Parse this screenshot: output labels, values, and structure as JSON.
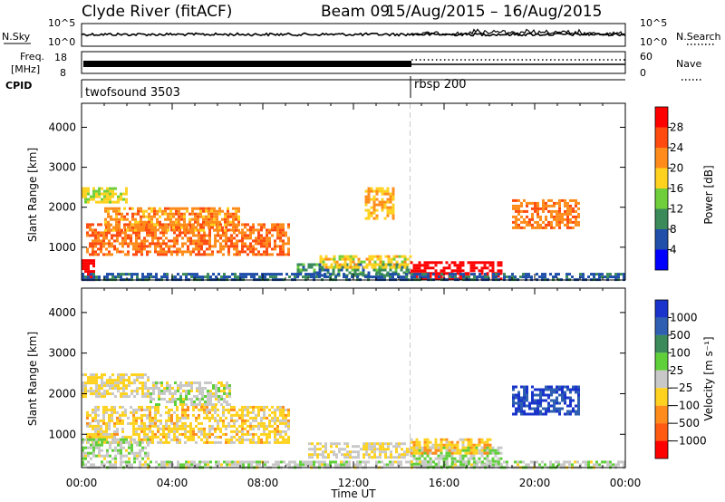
{
  "header": {
    "title": "Clyde River (fitACF)",
    "beam": "Beam 09",
    "date_range": "15/Aug/2015 – 16/Aug/2015"
  },
  "top_panels": {
    "nsky_label": "N.Sky",
    "nsearch_label": "N.Search",
    "noise_left_ticks": [
      "10^5",
      "10^0"
    ],
    "noise_right_ticks": [
      "10^5",
      "10^0"
    ],
    "freq_label_1": "Freq.",
    "freq_label_2": "[MHz]",
    "freq_left_ticks": [
      "18",
      "8"
    ],
    "nave_label": "Nave",
    "nave_right_ticks": [
      "60",
      "0"
    ],
    "cpid_label": "CPID",
    "cpid_segments": [
      {
        "label": "twofsound 3503",
        "start": 0,
        "end": 14.5
      },
      {
        "label": "rbsp 200",
        "start": 14.5,
        "end": 24
      }
    ]
  },
  "colors": {
    "power": [
      "#0000ff",
      "#1f4fa8",
      "#3a8a5a",
      "#6fcf3a",
      "#ffd21f",
      "#ff8c1a",
      "#ff4a10",
      "#ff0000"
    ],
    "velocity": [
      "#1a33cc",
      "#2e5fb0",
      "#3a8a5a",
      "#5fcf3a",
      "#c8c8c8",
      "#ffd21f",
      "#ff8c1a",
      "#ff5a10",
      "#ff0000"
    ]
  },
  "chart_data": [
    {
      "type": "heatmap",
      "ylabel": "Slant Range [km]",
      "xlabel": "",
      "y_ticks": [
        1000,
        2000,
        3000,
        4000
      ],
      "ylim": [
        180,
        4600
      ],
      "colorbar_label": "Power [dB]",
      "colorbar_ticks": [
        4,
        8,
        12,
        16,
        20,
        24,
        28
      ],
      "clim": [
        0,
        32
      ],
      "regions": [
        {
          "t0": 0.0,
          "t1": 0.5,
          "r0": 200,
          "r1": 700,
          "value": 31
        },
        {
          "t0": 0.2,
          "t1": 9.2,
          "r0": 800,
          "r1": 1600,
          "value": 24
        },
        {
          "t0": 1.0,
          "t1": 7.0,
          "r0": 1400,
          "r1": 2000,
          "value": 22
        },
        {
          "t0": 0.0,
          "t1": 2.0,
          "r0": 2100,
          "r1": 2500,
          "value": 17
        },
        {
          "t0": 9.5,
          "t1": 14.5,
          "r0": 300,
          "r1": 600,
          "value": 10
        },
        {
          "t0": 10.5,
          "t1": 14.5,
          "r0": 500,
          "r1": 800,
          "value": 18
        },
        {
          "t0": 14.5,
          "t1": 18.5,
          "r0": 200,
          "r1": 650,
          "value": 31
        },
        {
          "t0": 12.5,
          "t1": 13.8,
          "r0": 1700,
          "r1": 2500,
          "value": 20
        },
        {
          "t0": 19.0,
          "t1": 22.0,
          "r0": 1500,
          "r1": 2200,
          "value": 23
        },
        {
          "t0": 0.0,
          "t1": 24.0,
          "r0": 180,
          "r1": 360,
          "value": 7
        }
      ]
    },
    {
      "type": "heatmap",
      "ylabel": "Slant Range [km]",
      "xlabel": "Time UT",
      "x_ticks": [
        "00:00",
        "04:00",
        "08:00",
        "12:00",
        "16:00",
        "20:00",
        "00:00"
      ],
      "y_ticks": [
        1000,
        2000,
        3000,
        4000
      ],
      "ylim": [
        180,
        4600
      ],
      "colorbar_label": "Velocity [m s⁻¹]",
      "colorbar_ticks": [
        "1000",
        "500",
        "100",
        "25",
        "−25",
        "−100",
        "−500",
        "−1000"
      ],
      "clim": [
        -1000,
        1000
      ],
      "regions": [
        {
          "t0": 0.2,
          "t1": 9.2,
          "r0": 800,
          "r1": 1700,
          "value": -200
        },
        {
          "t0": 0.0,
          "t1": 3.0,
          "r0": 1900,
          "r1": 2500,
          "value": -150
        },
        {
          "t0": 3.0,
          "t1": 6.5,
          "r0": 1700,
          "r1": 2300,
          "value": 0
        },
        {
          "t0": 0.0,
          "t1": 3.0,
          "r0": 400,
          "r1": 900,
          "value": 60
        },
        {
          "t0": 10.0,
          "t1": 14.5,
          "r0": 400,
          "r1": 800,
          "value": -80
        },
        {
          "t0": 14.5,
          "t1": 18.5,
          "r0": 200,
          "r1": 700,
          "value": 80
        },
        {
          "t0": 14.5,
          "t1": 18.0,
          "r0": 500,
          "r1": 900,
          "value": -250
        },
        {
          "t0": 19.0,
          "t1": 22.0,
          "r0": 1500,
          "r1": 2200,
          "value": 800
        },
        {
          "t0": 0.0,
          "t1": 24.0,
          "r0": 180,
          "r1": 350,
          "value": 40
        }
      ]
    }
  ]
}
